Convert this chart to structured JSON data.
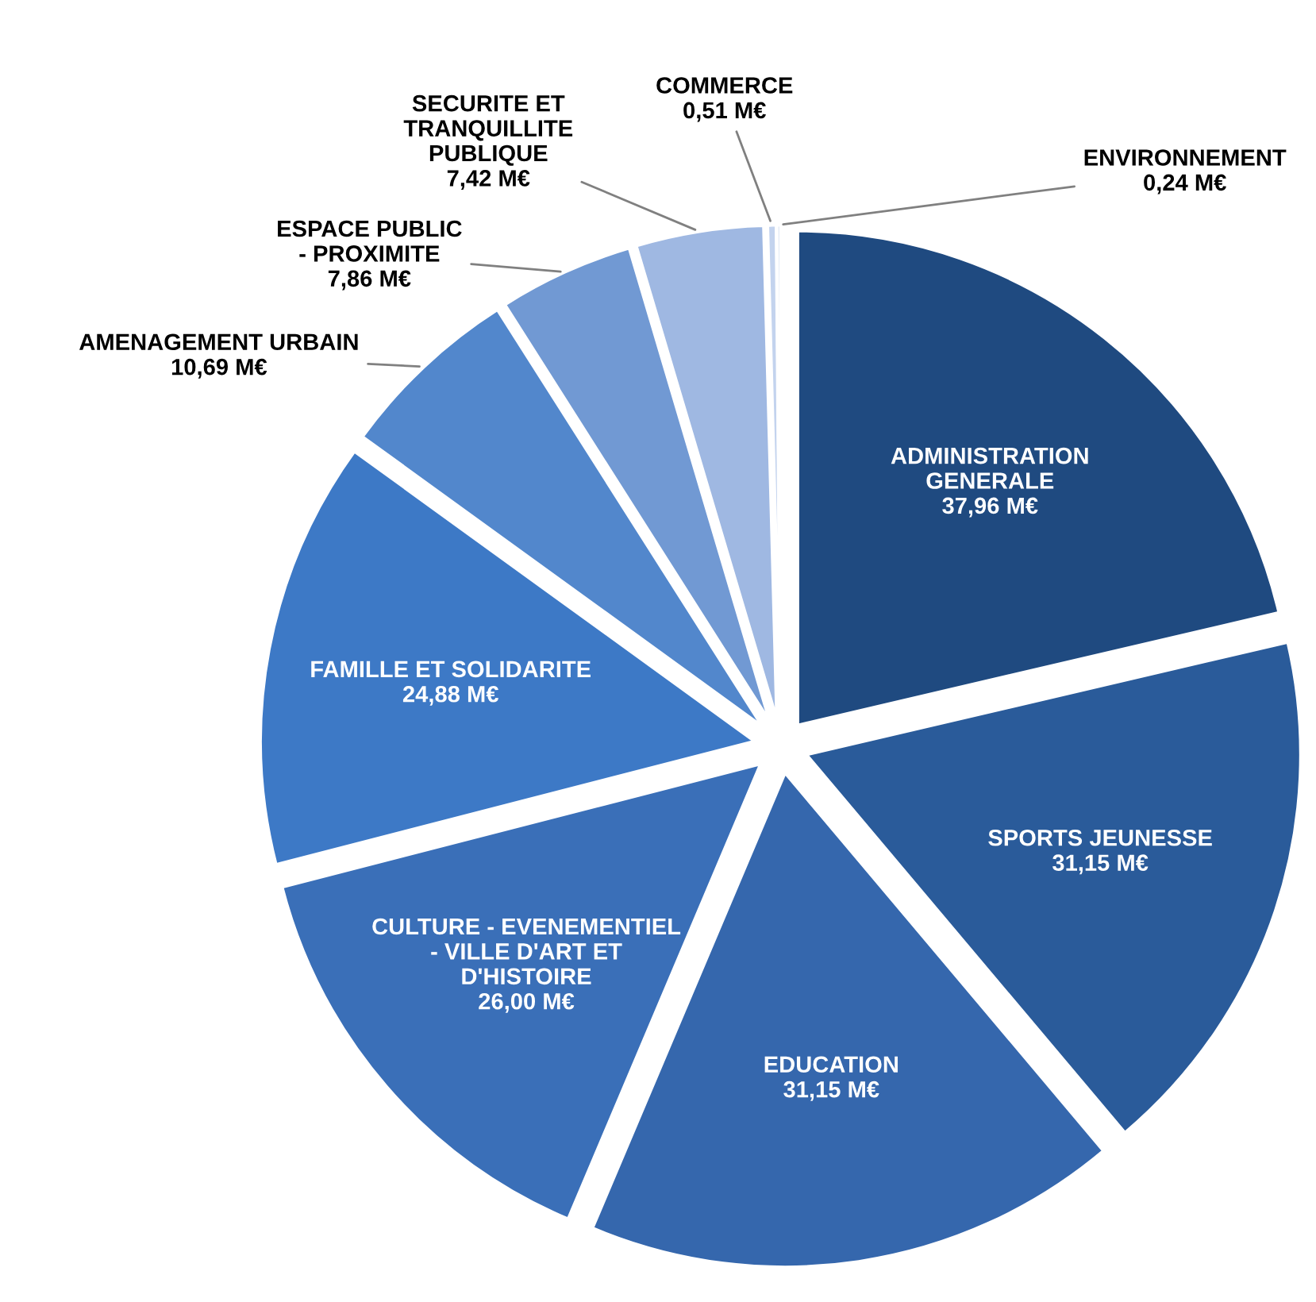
{
  "chart_data": {
    "type": "pie",
    "categories": [
      "ADMINISTRATION\nGENERALE",
      "SPORTS JEUNESSE",
      "EDUCATION",
      "CULTURE - EVENEMENTIEL\n- VILLE D'ART ET\nD'HISTOIRE",
      "FAMILLE ET SOLIDARITE",
      "AMENAGEMENT URBAIN",
      "ESPACE PUBLIC\n- PROXIMITE",
      "SECURITE ET\nTRANQUILLITE\nPUBLIQUE",
      "COMMERCE",
      "ENVIRONNEMENT"
    ],
    "values": [
      37.96,
      31.15,
      31.15,
      26.0,
      24.88,
      10.69,
      7.86,
      7.42,
      0.51,
      0.24
    ],
    "value_labels": [
      "37,96 M€",
      "31,15 M€",
      "31,15 M€",
      "26,00 M€",
      "24,88 M€",
      "10,69 M€",
      "7,86 M€",
      "7,42 M€",
      "0,51 M€",
      "0,24 M€"
    ],
    "colors": [
      "#1f4a80",
      "#2a5b9a",
      "#3567ad",
      "#3a6fb8",
      "#3d79c6",
      "#5287cc",
      "#7199d3",
      "#9fb8e2",
      "#c3d3ee",
      "#dbe4f3"
    ]
  }
}
